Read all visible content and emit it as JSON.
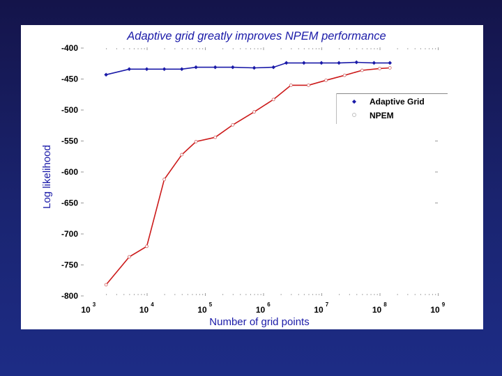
{
  "chart_data": {
    "type": "line",
    "title": "Adaptive grid greatly improves NPEM performance",
    "xlabel": "Number of grid points",
    "ylabel": "Log likelihood",
    "xscale": "log",
    "xlim": [
      1000,
      1000000000
    ],
    "ylim": [
      -800,
      -400
    ],
    "x_ticks": [
      {
        "base": "10",
        "exp": "3"
      },
      {
        "base": "10",
        "exp": "4"
      },
      {
        "base": "10",
        "exp": "5"
      },
      {
        "base": "10",
        "exp": "6"
      },
      {
        "base": "10",
        "exp": "7"
      },
      {
        "base": "10",
        "exp": "8"
      },
      {
        "base": "10",
        "exp": "9"
      }
    ],
    "y_ticks": [
      "-400",
      "-450",
      "-500",
      "-550",
      "-600",
      "-650",
      "-700",
      "-750",
      "-800"
    ],
    "legend_position": "upper-right",
    "series": [
      {
        "name": "Adaptive Grid",
        "color": "#1a1aa8",
        "marker": "diamond",
        "x": [
          2000,
          5000,
          10000,
          20000,
          40000,
          70000,
          150000,
          300000,
          700000,
          1500000,
          2500000,
          5000000,
          10000000,
          20000000,
          40000000,
          80000000,
          150000000
        ],
        "y": [
          -443,
          -434,
          -434,
          -434,
          -434,
          -431,
          -431,
          -431,
          -432,
          -431,
          -424,
          -424,
          -424,
          -424,
          -423,
          -424,
          -424
        ]
      },
      {
        "name": "NPEM",
        "color": "#cc1a1a",
        "marker": "circle",
        "x": [
          2000,
          5000,
          10000,
          20000,
          40000,
          70000,
          150000,
          300000,
          700000,
          1500000,
          3000000,
          6000000,
          12000000,
          25000000,
          50000000,
          100000000,
          150000000
        ],
        "y": [
          -782,
          -737,
          -720,
          -612,
          -572,
          -551,
          -544,
          -524,
          -503,
          -483,
          -460,
          -460,
          -452,
          -444,
          -436,
          -433,
          -432
        ]
      }
    ]
  },
  "colors": {
    "title": "#1a1aa8",
    "axis_labels": "#1a1aa8",
    "tick_labels": "#000000",
    "background": "#1a2470",
    "panel": "#ffffff"
  }
}
